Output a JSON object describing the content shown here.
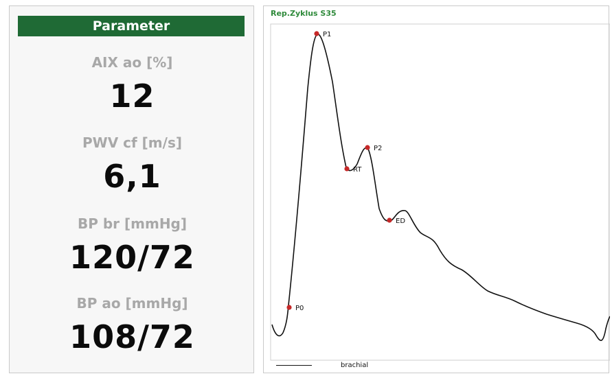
{
  "parameters": {
    "header": "Parameter",
    "items": [
      {
        "label": "AIX ao [%]",
        "value": "12"
      },
      {
        "label": "PWV cf [m/s]",
        "value": "6,1"
      },
      {
        "label": "BP br [mmHg]",
        "value": "120/72"
      },
      {
        "label": "BP ao [mmHg]",
        "value": "108/72"
      }
    ]
  },
  "chart_panel": {
    "title": "Rep.Zyklus S35",
    "legend": [
      {
        "line_color": "#111111",
        "label": "brachial"
      }
    ]
  },
  "chart_data": {
    "type": "line",
    "title": "Rep.Zyklus S35",
    "series": [
      {
        "name": "brachial",
        "color": "#111111"
      }
    ],
    "markers": [
      {
        "label": "P0",
        "color": "#c62828"
      },
      {
        "label": "P1",
        "color": "#c62828"
      },
      {
        "label": "RT",
        "color": "#c62828"
      },
      {
        "label": "P2",
        "color": "#c62828"
      },
      {
        "label": "ED",
        "color": "#c62828"
      }
    ],
    "grid": false,
    "legend_position": "bottom-left"
  },
  "colors": {
    "header_bg": "#1f6a35",
    "header_text": "#ffffff",
    "label_gray": "#a8a8a8",
    "value_black": "#0b0b0b",
    "title_green": "#2f8a3b",
    "marker_red": "#c62828"
  }
}
